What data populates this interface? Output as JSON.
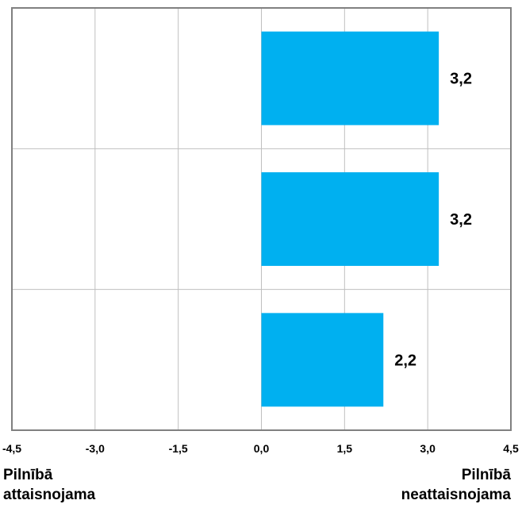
{
  "chart_data": {
    "type": "bar",
    "orientation": "horizontal",
    "categories": [
      "",
      "",
      ""
    ],
    "values": [
      3.2,
      3.2,
      2.2
    ],
    "data_labels": [
      "3,2",
      "3,2",
      "2,2"
    ],
    "xlim": [
      -4.5,
      4.5
    ],
    "xticks": [
      -4.5,
      -3.0,
      -1.5,
      0.0,
      1.5,
      3.0,
      4.5
    ],
    "xtick_labels": [
      "-4,5",
      "-3,0",
      "-1,5",
      "0,0",
      "1,5",
      "3,0",
      "4,5"
    ],
    "title": "",
    "xlabel": "",
    "ylabel": "",
    "grid": true,
    "legend": "none",
    "bar_color": "#00B0F0",
    "grid_color": "#BFBFBF",
    "border_color": "#808080",
    "left_end_label": [
      "Pilnībā",
      "attaisnojama"
    ],
    "right_end_label": [
      "Pilnībā",
      "neattaisnojama"
    ]
  }
}
